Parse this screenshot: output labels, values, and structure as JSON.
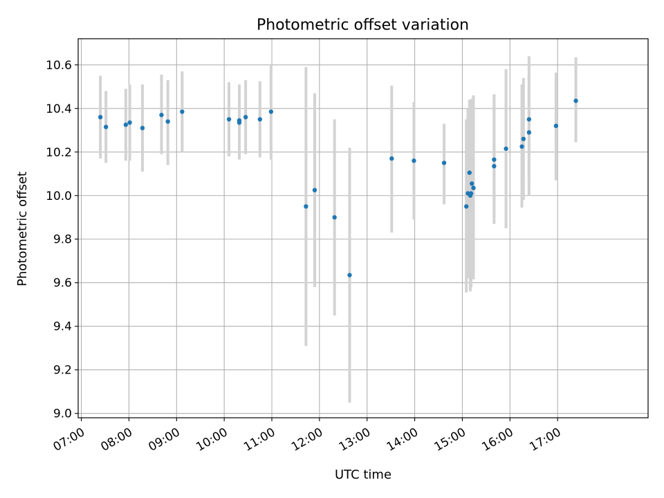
{
  "chart_data": {
    "type": "scatter",
    "title": "Photometric offset variation",
    "xlabel": "UTC time",
    "ylabel": "Photometric offset",
    "xlim": [
      "06:56",
      "18:54"
    ],
    "ylim": [
      8.98,
      10.72
    ],
    "grid": true,
    "x_tick_labels": [
      "07:00",
      "08:00",
      "09:00",
      "10:00",
      "11:00",
      "12:00",
      "13:00",
      "14:00",
      "15:00",
      "16:00",
      "17:00"
    ],
    "y_tick_labels": [
      "9.0",
      "9.2",
      "9.4",
      "9.6",
      "9.8",
      "10.0",
      "10.2",
      "10.4",
      "10.6"
    ],
    "y_ticks": [
      9.0,
      9.2,
      9.4,
      9.6,
      9.8,
      10.0,
      10.2,
      10.4,
      10.6
    ],
    "colors": {
      "points": "#1f77b4",
      "error_bars": "#d3d3d3",
      "grid": "#b0b0b0"
    },
    "points": [
      {
        "x": "07:24",
        "y": 10.36,
        "lo": 10.17,
        "hi": 10.55
      },
      {
        "x": "07:31",
        "y": 10.315,
        "lo": 10.15,
        "hi": 10.48
      },
      {
        "x": "07:56",
        "y": 10.325,
        "lo": 10.16,
        "hi": 10.49
      },
      {
        "x": "08:01",
        "y": 10.335,
        "lo": 10.16,
        "hi": 10.51
      },
      {
        "x": "08:17",
        "y": 10.31,
        "lo": 10.11,
        "hi": 10.51
      },
      {
        "x": "08:41",
        "y": 10.37,
        "lo": 10.19,
        "hi": 10.555
      },
      {
        "x": "08:49",
        "y": 10.34,
        "lo": 10.14,
        "hi": 10.53
      },
      {
        "x": "09:07",
        "y": 10.385,
        "lo": 10.2,
        "hi": 10.57
      },
      {
        "x": "10:06",
        "y": 10.35,
        "lo": 10.18,
        "hi": 10.52
      },
      {
        "x": "10:19",
        "y": 10.345,
        "lo": 10.165,
        "hi": 10.51
      },
      {
        "x": "10:19",
        "y": 10.335,
        "lo": 10.17,
        "hi": 10.5
      },
      {
        "x": "10:27",
        "y": 10.36,
        "lo": 10.19,
        "hi": 10.53
      },
      {
        "x": "10:45",
        "y": 10.35,
        "lo": 10.175,
        "hi": 10.525
      },
      {
        "x": "10:59",
        "y": 10.385,
        "lo": 10.165,
        "hi": 10.6
      },
      {
        "x": "11:43",
        "y": 9.95,
        "lo": 9.31,
        "hi": 10.59
      },
      {
        "x": "11:54",
        "y": 10.025,
        "lo": 9.58,
        "hi": 10.47
      },
      {
        "x": "12:19",
        "y": 9.9,
        "lo": 9.45,
        "hi": 10.35
      },
      {
        "x": "12:38",
        "y": 9.635,
        "lo": 9.05,
        "hi": 10.22
      },
      {
        "x": "13:31",
        "y": 10.17,
        "lo": 9.83,
        "hi": 10.505
      },
      {
        "x": "13:59",
        "y": 10.16,
        "lo": 9.89,
        "hi": 10.43
      },
      {
        "x": "14:37",
        "y": 10.15,
        "lo": 9.96,
        "hi": 10.33
      },
      {
        "x": "15:05",
        "y": 9.95,
        "lo": 9.555,
        "hi": 10.35
      },
      {
        "x": "15:07",
        "y": 10.01,
        "lo": 9.62,
        "hi": 10.4
      },
      {
        "x": "15:09",
        "y": 10.105,
        "lo": 9.76,
        "hi": 10.44
      },
      {
        "x": "15:10",
        "y": 10.0,
        "lo": 9.56,
        "hi": 10.44
      },
      {
        "x": "15:11",
        "y": 10.01,
        "lo": 9.58,
        "hi": 10.44
      },
      {
        "x": "15:12",
        "y": 10.055,
        "lo": 9.67,
        "hi": 10.445
      },
      {
        "x": "15:14",
        "y": 10.035,
        "lo": 9.615,
        "hi": 10.46
      },
      {
        "x": "15:40",
        "y": 10.165,
        "lo": 9.87,
        "hi": 10.465
      },
      {
        "x": "15:40",
        "y": 10.135,
        "lo": 9.9,
        "hi": 10.46
      },
      {
        "x": "15:55",
        "y": 10.215,
        "lo": 9.85,
        "hi": 10.58
      },
      {
        "x": "16:15",
        "y": 10.225,
        "lo": 9.945,
        "hi": 10.51
      },
      {
        "x": "16:17",
        "y": 10.26,
        "lo": 9.98,
        "hi": 10.54
      },
      {
        "x": "16:24",
        "y": 10.29,
        "lo": 10.0,
        "hi": 10.545
      },
      {
        "x": "16:24",
        "y": 10.35,
        "lo": 10.06,
        "hi": 10.64
      },
      {
        "x": "16:58",
        "y": 10.32,
        "lo": 10.07,
        "hi": 10.565
      },
      {
        "x": "17:23",
        "y": 10.435,
        "lo": 10.245,
        "hi": 10.635
      }
    ]
  }
}
